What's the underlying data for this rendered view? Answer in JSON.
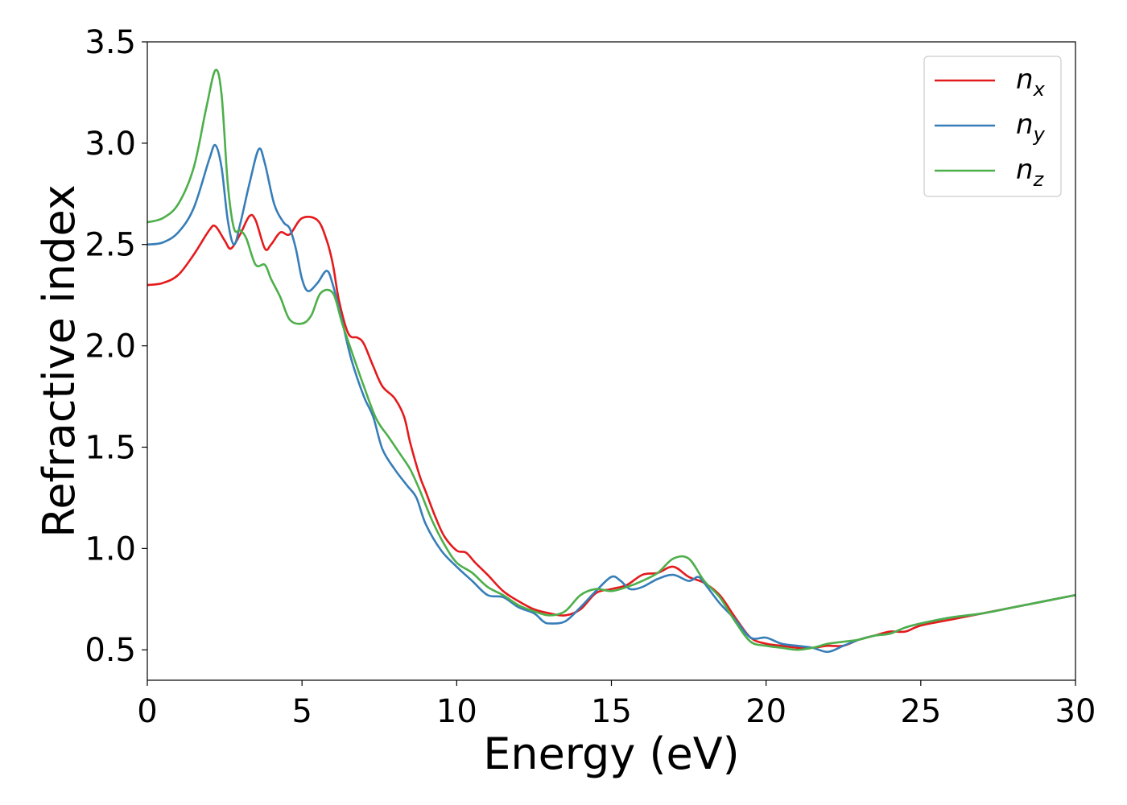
{
  "chart_data": {
    "type": "line",
    "xlabel": "Energy (eV)",
    "ylabel": "Refractive index",
    "xlim": [
      0,
      30
    ],
    "ylim": [
      0.35,
      3.5
    ],
    "xticks": [
      "0",
      "5",
      "10",
      "15",
      "20",
      "25",
      "30"
    ],
    "yticks": [
      "0.5",
      "1.0",
      "1.5",
      "2.0",
      "2.5",
      "3.0",
      "3.5"
    ],
    "grid": false,
    "legend_position": "top-right",
    "series": [
      {
        "name": "n",
        "subscript": "x",
        "color": "#e41a1c",
        "points": [
          [
            0,
            2.3
          ],
          [
            0.5,
            2.31
          ],
          [
            1.0,
            2.35
          ],
          [
            1.5,
            2.45
          ],
          [
            2.0,
            2.57
          ],
          [
            2.2,
            2.59
          ],
          [
            2.5,
            2.52
          ],
          [
            2.7,
            2.48
          ],
          [
            3.0,
            2.55
          ],
          [
            3.3,
            2.64
          ],
          [
            3.5,
            2.62
          ],
          [
            3.8,
            2.48
          ],
          [
            4.0,
            2.5
          ],
          [
            4.3,
            2.56
          ],
          [
            4.6,
            2.55
          ],
          [
            5.0,
            2.63
          ],
          [
            5.5,
            2.62
          ],
          [
            5.8,
            2.52
          ],
          [
            6.0,
            2.4
          ],
          [
            6.2,
            2.22
          ],
          [
            6.5,
            2.06
          ],
          [
            6.8,
            2.04
          ],
          [
            7.0,
            2.01
          ],
          [
            7.3,
            1.9
          ],
          [
            7.6,
            1.8
          ],
          [
            8.0,
            1.74
          ],
          [
            8.3,
            1.65
          ],
          [
            8.5,
            1.52
          ],
          [
            8.8,
            1.36
          ],
          [
            9.0,
            1.28
          ],
          [
            9.3,
            1.16
          ],
          [
            9.6,
            1.06
          ],
          [
            10.0,
            0.99
          ],
          [
            10.3,
            0.98
          ],
          [
            10.6,
            0.93
          ],
          [
            11.0,
            0.87
          ],
          [
            11.5,
            0.79
          ],
          [
            12.0,
            0.74
          ],
          [
            12.5,
            0.7
          ],
          [
            13.0,
            0.68
          ],
          [
            13.5,
            0.67
          ],
          [
            14.0,
            0.7
          ],
          [
            14.5,
            0.78
          ],
          [
            15.0,
            0.8
          ],
          [
            15.5,
            0.82
          ],
          [
            16.0,
            0.87
          ],
          [
            16.5,
            0.88
          ],
          [
            17.0,
            0.91
          ],
          [
            17.5,
            0.86
          ],
          [
            18.0,
            0.83
          ],
          [
            18.5,
            0.77
          ],
          [
            19.0,
            0.66
          ],
          [
            19.5,
            0.56
          ],
          [
            20.0,
            0.53
          ],
          [
            20.5,
            0.52
          ],
          [
            21.0,
            0.51
          ],
          [
            21.5,
            0.51
          ],
          [
            22.0,
            0.52
          ],
          [
            22.5,
            0.52
          ],
          [
            23.0,
            0.55
          ],
          [
            23.5,
            0.57
          ],
          [
            24.0,
            0.59
          ],
          [
            24.5,
            0.59
          ],
          [
            25.0,
            0.62
          ],
          [
            26.0,
            0.65
          ],
          [
            27.0,
            0.68
          ],
          [
            28.0,
            0.71
          ],
          [
            29.0,
            0.74
          ],
          [
            30.0,
            0.77
          ]
        ]
      },
      {
        "name": "n",
        "subscript": "y",
        "color": "#377eb8",
        "points": [
          [
            0,
            2.5
          ],
          [
            0.5,
            2.51
          ],
          [
            1.0,
            2.56
          ],
          [
            1.5,
            2.68
          ],
          [
            2.0,
            2.92
          ],
          [
            2.2,
            2.99
          ],
          [
            2.4,
            2.88
          ],
          [
            2.6,
            2.62
          ],
          [
            2.8,
            2.5
          ],
          [
            3.0,
            2.6
          ],
          [
            3.3,
            2.8
          ],
          [
            3.6,
            2.97
          ],
          [
            3.8,
            2.9
          ],
          [
            4.1,
            2.7
          ],
          [
            4.4,
            2.61
          ],
          [
            4.6,
            2.58
          ],
          [
            4.8,
            2.48
          ],
          [
            5.0,
            2.33
          ],
          [
            5.2,
            2.27
          ],
          [
            5.5,
            2.31
          ],
          [
            5.8,
            2.37
          ],
          [
            6.0,
            2.3
          ],
          [
            6.3,
            2.12
          ],
          [
            6.6,
            1.93
          ],
          [
            7.0,
            1.75
          ],
          [
            7.3,
            1.65
          ],
          [
            7.6,
            1.49
          ],
          [
            8.0,
            1.39
          ],
          [
            8.4,
            1.31
          ],
          [
            8.7,
            1.25
          ],
          [
            9.0,
            1.12
          ],
          [
            9.5,
            0.99
          ],
          [
            10.0,
            0.91
          ],
          [
            10.5,
            0.84
          ],
          [
            11.0,
            0.77
          ],
          [
            11.5,
            0.76
          ],
          [
            12.0,
            0.71
          ],
          [
            12.5,
            0.68
          ],
          [
            12.8,
            0.64
          ],
          [
            13.0,
            0.63
          ],
          [
            13.5,
            0.64
          ],
          [
            14.0,
            0.71
          ],
          [
            14.5,
            0.79
          ],
          [
            15.0,
            0.86
          ],
          [
            15.3,
            0.84
          ],
          [
            15.6,
            0.8
          ],
          [
            16.0,
            0.81
          ],
          [
            16.5,
            0.85
          ],
          [
            17.0,
            0.87
          ],
          [
            17.5,
            0.84
          ],
          [
            17.8,
            0.86
          ],
          [
            18.0,
            0.83
          ],
          [
            18.5,
            0.73
          ],
          [
            19.0,
            0.65
          ],
          [
            19.5,
            0.56
          ],
          [
            20.0,
            0.56
          ],
          [
            20.5,
            0.53
          ],
          [
            21.0,
            0.52
          ],
          [
            21.5,
            0.51
          ],
          [
            22.0,
            0.49
          ],
          [
            22.5,
            0.52
          ],
          [
            23.0,
            0.55
          ],
          [
            23.5,
            0.57
          ],
          [
            24.0,
            0.58
          ],
          [
            24.5,
            0.61
          ],
          [
            25.0,
            0.63
          ],
          [
            26.0,
            0.66
          ],
          [
            27.0,
            0.68
          ],
          [
            28.0,
            0.71
          ],
          [
            29.0,
            0.74
          ],
          [
            30.0,
            0.77
          ]
        ]
      },
      {
        "name": "n",
        "subscript": "z",
        "color": "#4daf4a",
        "points": [
          [
            0,
            2.61
          ],
          [
            0.5,
            2.63
          ],
          [
            1.0,
            2.7
          ],
          [
            1.5,
            2.88
          ],
          [
            1.9,
            3.17
          ],
          [
            2.2,
            3.36
          ],
          [
            2.4,
            3.24
          ],
          [
            2.6,
            2.8
          ],
          [
            2.8,
            2.58
          ],
          [
            3.0,
            2.57
          ],
          [
            3.2,
            2.53
          ],
          [
            3.5,
            2.4
          ],
          [
            3.8,
            2.4
          ],
          [
            4.0,
            2.33
          ],
          [
            4.3,
            2.24
          ],
          [
            4.6,
            2.13
          ],
          [
            5.0,
            2.11
          ],
          [
            5.3,
            2.15
          ],
          [
            5.6,
            2.26
          ],
          [
            6.0,
            2.26
          ],
          [
            6.3,
            2.11
          ],
          [
            6.7,
            1.93
          ],
          [
            7.0,
            1.8
          ],
          [
            7.4,
            1.64
          ],
          [
            7.8,
            1.55
          ],
          [
            8.2,
            1.46
          ],
          [
            8.5,
            1.39
          ],
          [
            8.8,
            1.29
          ],
          [
            9.2,
            1.14
          ],
          [
            9.6,
            1.02
          ],
          [
            10.0,
            0.93
          ],
          [
            10.5,
            0.88
          ],
          [
            11.0,
            0.81
          ],
          [
            11.5,
            0.77
          ],
          [
            12.0,
            0.72
          ],
          [
            12.5,
            0.69
          ],
          [
            13.0,
            0.67
          ],
          [
            13.5,
            0.69
          ],
          [
            14.0,
            0.77
          ],
          [
            14.5,
            0.8
          ],
          [
            15.0,
            0.79
          ],
          [
            15.5,
            0.81
          ],
          [
            16.0,
            0.84
          ],
          [
            16.5,
            0.88
          ],
          [
            17.0,
            0.95
          ],
          [
            17.5,
            0.95
          ],
          [
            18.0,
            0.84
          ],
          [
            18.5,
            0.76
          ],
          [
            19.0,
            0.64
          ],
          [
            19.5,
            0.54
          ],
          [
            20.0,
            0.52
          ],
          [
            20.5,
            0.51
          ],
          [
            21.0,
            0.5
          ],
          [
            21.5,
            0.51
          ],
          [
            22.0,
            0.53
          ],
          [
            22.5,
            0.54
          ],
          [
            23.0,
            0.55
          ],
          [
            23.5,
            0.57
          ],
          [
            24.0,
            0.58
          ],
          [
            24.5,
            0.61
          ],
          [
            25.0,
            0.63
          ],
          [
            26.0,
            0.66
          ],
          [
            27.0,
            0.68
          ],
          [
            28.0,
            0.71
          ],
          [
            29.0,
            0.74
          ],
          [
            30.0,
            0.77
          ]
        ]
      }
    ]
  }
}
